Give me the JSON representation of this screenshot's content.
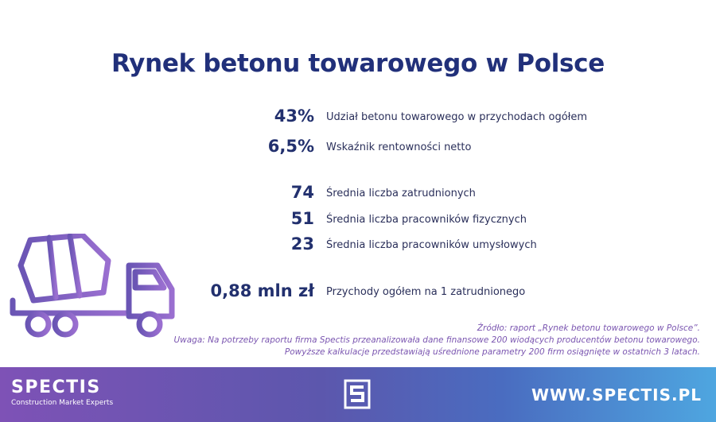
{
  "title": "Rynek betonu towarowego w Polsce",
  "stats": [
    {
      "value": "43%",
      "label": "Udział betonu towarowego w przychodach ogółem"
    },
    {
      "value": "6,5%",
      "label": "Wskaźnik rentowności netto"
    },
    {
      "value": "74",
      "label": "Średnia liczba zatrudnionych"
    },
    {
      "value": "51",
      "label": "Średnia liczba pracowników fizycznych"
    },
    {
      "value": "23",
      "label": "Średnia liczba pracowników umysłowych"
    },
    {
      "value": "0,88 mln zł",
      "label": "Przychody ogółem na 1 zatrudnionego"
    }
  ],
  "notes": {
    "source": "Źródło: raport „Rynek betonu towarowego w Polsce”.",
    "remark_1": "Uwaga: Na potrzeby raportu firma Spectis przeanalizowała dane finansowe 200 wiodących producentów betonu towarowego.",
    "remark_2": "Powyższe kalkulacje przedstawiają uśrednione parametry 200 firm osiągnięte w ostatnich 3 latach."
  },
  "footer": {
    "logo_word": "SPECTIS",
    "logo_tagline": "Construction Market Experts",
    "website": "WWW.SPECTIS.PL"
  },
  "icons": {
    "illustration": "concrete-mixer-truck-icon",
    "footer_emblem": "spectis-s-emblem-icon"
  },
  "colors": {
    "title": "#21307a",
    "truck_gradient": [
      "#6a55b4",
      "#9a6fd0"
    ],
    "notes": "#7a55b0",
    "footer_gradient": [
      "#7e52b6",
      "#4ea6e0"
    ]
  }
}
